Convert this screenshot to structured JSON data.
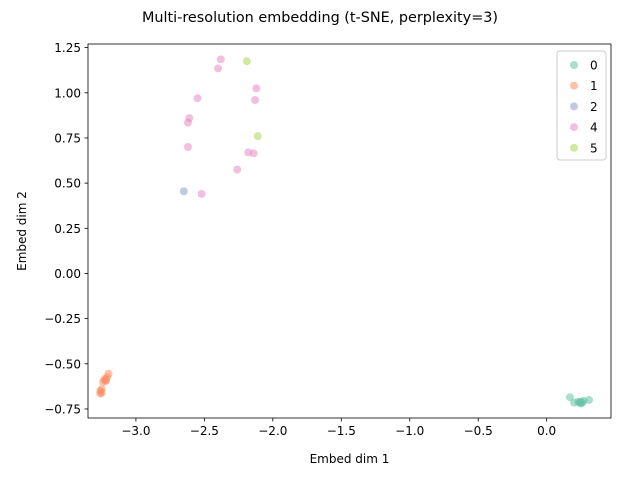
{
  "chart_data": {
    "type": "scatter",
    "title": "Multi-resolution embedding (t-SNE, perplexity=3)",
    "xlabel": "Embed dim 1",
    "ylabel": "Embed dim 2",
    "xlim": [
      -3.35,
      0.47
    ],
    "ylim": [
      -0.8,
      1.27
    ],
    "xticks": [
      -3.0,
      -2.5,
      -2.0,
      -1.5,
      -1.0,
      -0.5,
      0.0
    ],
    "xtick_labels": [
      "−3.0",
      "−2.5",
      "−2.0",
      "−1.5",
      "−1.0",
      "−0.5",
      "0.0"
    ],
    "yticks": [
      -0.75,
      -0.5,
      -0.25,
      0.0,
      0.25,
      0.5,
      0.75,
      1.0,
      1.25
    ],
    "ytick_labels": [
      "−0.75",
      "−0.50",
      "−0.25",
      "0.00",
      "0.25",
      "0.50",
      "0.75",
      "1.00",
      "1.25"
    ],
    "grid": false,
    "legend_position": "top-right",
    "series": [
      {
        "name": "0",
        "color": "#66c2a5",
        "points": [
          [
            0.17,
            -0.685
          ],
          [
            0.2,
            -0.715
          ],
          [
            0.23,
            -0.71
          ],
          [
            0.25,
            -0.72
          ],
          [
            0.26,
            -0.715
          ],
          [
            0.27,
            -0.705
          ],
          [
            0.25,
            -0.71
          ],
          [
            0.31,
            -0.7
          ],
          [
            0.24,
            -0.715
          ]
        ]
      },
      {
        "name": "1",
        "color": "#fc8d62",
        "points": [
          [
            -3.2,
            -0.555
          ],
          [
            -3.21,
            -0.575
          ],
          [
            -3.22,
            -0.59
          ],
          [
            -3.23,
            -0.585
          ],
          [
            -3.24,
            -0.6
          ],
          [
            -3.25,
            -0.64
          ],
          [
            -3.26,
            -0.65
          ],
          [
            -3.26,
            -0.665
          ],
          [
            -3.25,
            -0.66
          ],
          [
            -3.22,
            -0.595
          ]
        ]
      },
      {
        "name": "2",
        "color": "#8da0cb",
        "points": [
          [
            -2.65,
            0.455
          ]
        ]
      },
      {
        "name": "4",
        "color": "#e78ac3",
        "points": [
          [
            -2.38,
            1.185
          ],
          [
            -2.4,
            1.135
          ],
          [
            -2.12,
            1.025
          ],
          [
            -2.55,
            0.97
          ],
          [
            -2.13,
            0.96
          ],
          [
            -2.61,
            0.86
          ],
          [
            -2.62,
            0.835
          ],
          [
            -2.62,
            0.7
          ],
          [
            -2.18,
            0.67
          ],
          [
            -2.14,
            0.665
          ],
          [
            -2.26,
            0.575
          ],
          [
            -2.52,
            0.44
          ]
        ]
      },
      {
        "name": "5",
        "color": "#a6d854",
        "points": [
          [
            -2.19,
            1.175
          ],
          [
            -2.11,
            0.76
          ]
        ]
      }
    ]
  }
}
